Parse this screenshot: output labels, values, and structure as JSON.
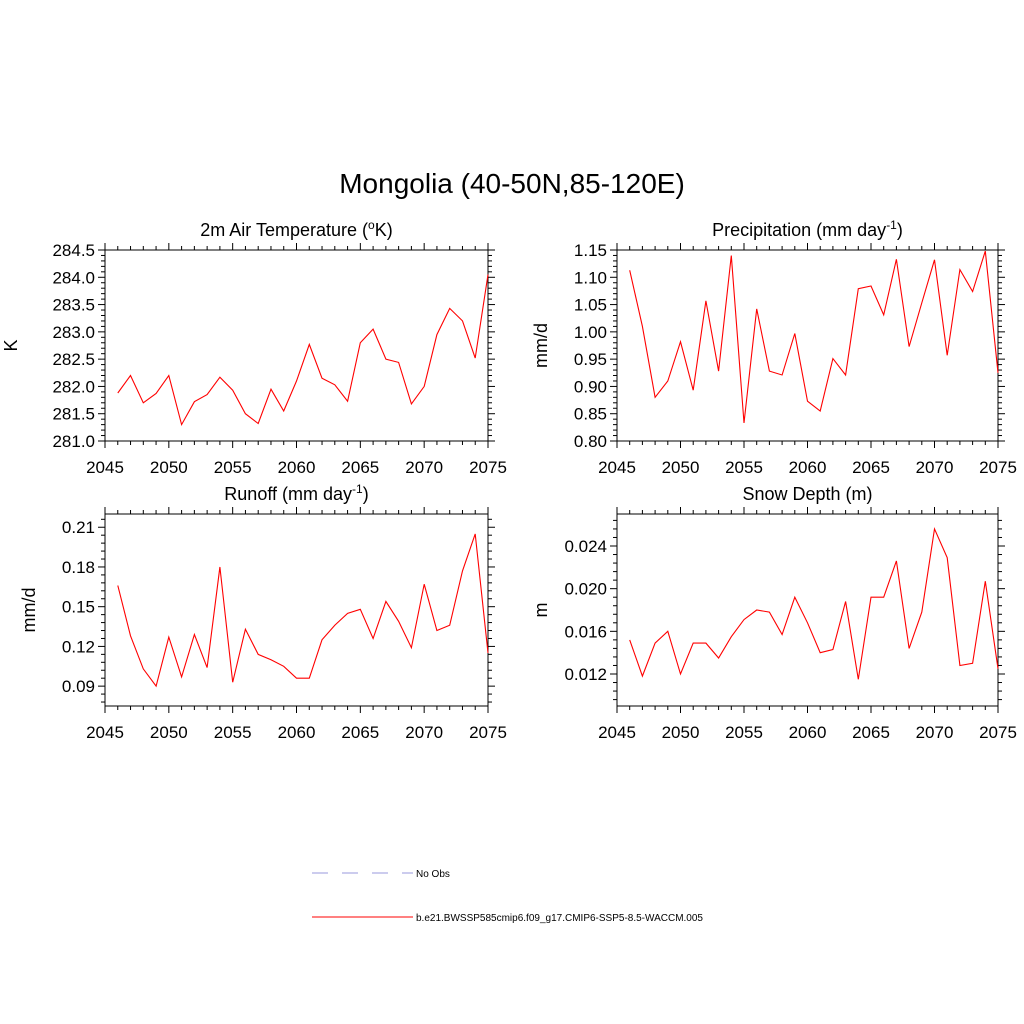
{
  "title": "Mongolia (40-50N,85-120E)",
  "legend": {
    "items": [
      {
        "label": "No Obs",
        "color": "#9999dd",
        "dash": true
      },
      {
        "label": "b.e21.BWSSP585cmip6.f09_g17.CMIP6-SSP5-8.5-WACCM.005",
        "color": "#ff0000",
        "dash": false
      }
    ]
  },
  "chart_data": [
    {
      "type": "line",
      "title": "2m Air Temperature (",
      "title_sup": "o",
      "title_end": "K)",
      "ylabel": "K",
      "xlim": [
        2045,
        2075
      ],
      "ylim": [
        281.0,
        284.5
      ],
      "xticks": [
        "2045",
        "2050",
        "2055",
        "2060",
        "2065",
        "2070",
        "2075"
      ],
      "yticks": [
        "281.0",
        "281.5",
        "282.0",
        "282.5",
        "283.0",
        "283.5",
        "284.0",
        "284.5"
      ],
      "series": [
        {
          "color": "#ff0000",
          "x": [
            2046,
            2047,
            2048,
            2049,
            2050,
            2051,
            2052,
            2053,
            2054,
            2055,
            2056,
            2057,
            2058,
            2059,
            2060,
            2061,
            2062,
            2063,
            2064,
            2065,
            2066,
            2067,
            2068,
            2069,
            2070,
            2071,
            2072,
            2073,
            2074,
            2075
          ],
          "y": [
            281.88,
            282.2,
            281.7,
            281.87,
            282.2,
            281.3,
            281.72,
            281.85,
            282.17,
            281.93,
            281.5,
            281.32,
            281.95,
            281.55,
            282.1,
            282.77,
            282.15,
            282.03,
            281.73,
            282.8,
            283.05,
            282.5,
            282.44,
            281.68,
            282.0,
            282.95,
            283.43,
            283.2,
            282.52,
            284.05
          ]
        }
      ]
    },
    {
      "type": "line",
      "title": "Precipitation (mm day",
      "title_sup": "-1",
      "title_end": ")",
      "ylabel": "mm/d",
      "xlim": [
        2045,
        2075
      ],
      "ylim": [
        0.8,
        1.15
      ],
      "xticks": [
        "2045",
        "2050",
        "2055",
        "2060",
        "2065",
        "2070",
        "2075"
      ],
      "yticks": [
        "0.80",
        "0.85",
        "0.90",
        "0.95",
        "1.00",
        "1.05",
        "1.10",
        "1.15"
      ],
      "series": [
        {
          "color": "#ff0000",
          "x": [
            2046,
            2047,
            2048,
            2049,
            2050,
            2051,
            2052,
            2053,
            2054,
            2055,
            2056,
            2057,
            2058,
            2059,
            2060,
            2061,
            2062,
            2063,
            2064,
            2065,
            2066,
            2067,
            2068,
            2069,
            2070,
            2071,
            2072,
            2073,
            2074,
            2075
          ],
          "y": [
            1.113,
            1.01,
            0.88,
            0.91,
            0.982,
            0.893,
            1.057,
            0.928,
            1.14,
            0.833,
            1.042,
            0.928,
            0.921,
            0.997,
            0.873,
            0.855,
            0.951,
            0.921,
            1.079,
            1.084,
            1.031,
            1.133,
            0.973,
            1.053,
            1.132,
            0.957,
            1.114,
            1.074,
            1.148,
            0.925
          ]
        }
      ]
    },
    {
      "type": "line",
      "title": "Runoff (mm day",
      "title_sup": "-1",
      "title_end": ")",
      "ylabel": "mm/d",
      "xlim": [
        2045,
        2075
      ],
      "ylim": [
        0.075,
        0.22
      ],
      "xticks": [
        "2045",
        "2050",
        "2055",
        "2060",
        "2065",
        "2070",
        "2075"
      ],
      "yticks": [
        "0.09",
        "0.12",
        "0.15",
        "0.18",
        "0.21"
      ],
      "ytick_values": [
        0.09,
        0.12,
        0.15,
        0.18,
        0.21
      ],
      "series": [
        {
          "color": "#ff0000",
          "x": [
            2046,
            2047,
            2048,
            2049,
            2050,
            2051,
            2052,
            2053,
            2054,
            2055,
            2056,
            2057,
            2058,
            2059,
            2060,
            2061,
            2062,
            2063,
            2064,
            2065,
            2066,
            2067,
            2068,
            2069,
            2070,
            2071,
            2072,
            2073,
            2074,
            2075
          ],
          "y": [
            0.166,
            0.128,
            0.103,
            0.09,
            0.127,
            0.097,
            0.129,
            0.104,
            0.18,
            0.093,
            0.133,
            0.114,
            0.11,
            0.105,
            0.096,
            0.096,
            0.125,
            0.136,
            0.145,
            0.148,
            0.126,
            0.154,
            0.139,
            0.119,
            0.167,
            0.132,
            0.136,
            0.177,
            0.205,
            0.115
          ]
        }
      ]
    },
    {
      "type": "line",
      "title": "Snow Depth (m)",
      "title_sup": "",
      "title_end": "",
      "ylabel": "m",
      "xlim": [
        2045,
        2075
      ],
      "ylim": [
        0.009,
        0.027
      ],
      "xticks": [
        "2045",
        "2050",
        "2055",
        "2060",
        "2065",
        "2070",
        "2075"
      ],
      "yticks": [
        "0.012",
        "0.016",
        "0.020",
        "0.024"
      ],
      "ytick_values": [
        0.012,
        0.016,
        0.02,
        0.024
      ],
      "series": [
        {
          "color": "#ff0000",
          "x": [
            2046,
            2047,
            2048,
            2049,
            2050,
            2051,
            2052,
            2053,
            2054,
            2055,
            2056,
            2057,
            2058,
            2059,
            2060,
            2061,
            2062,
            2063,
            2064,
            2065,
            2066,
            2067,
            2068,
            2069,
            2070,
            2071,
            2072,
            2073,
            2074,
            2075
          ],
          "y": [
            0.0152,
            0.0118,
            0.0149,
            0.016,
            0.012,
            0.0149,
            0.0149,
            0.0135,
            0.0155,
            0.0171,
            0.018,
            0.0178,
            0.0157,
            0.0192,
            0.0168,
            0.014,
            0.0143,
            0.0188,
            0.0115,
            0.0192,
            0.0192,
            0.0226,
            0.0144,
            0.0178,
            0.0256,
            0.0229,
            0.0128,
            0.013,
            0.0207,
            0.0125
          ]
        }
      ]
    }
  ]
}
